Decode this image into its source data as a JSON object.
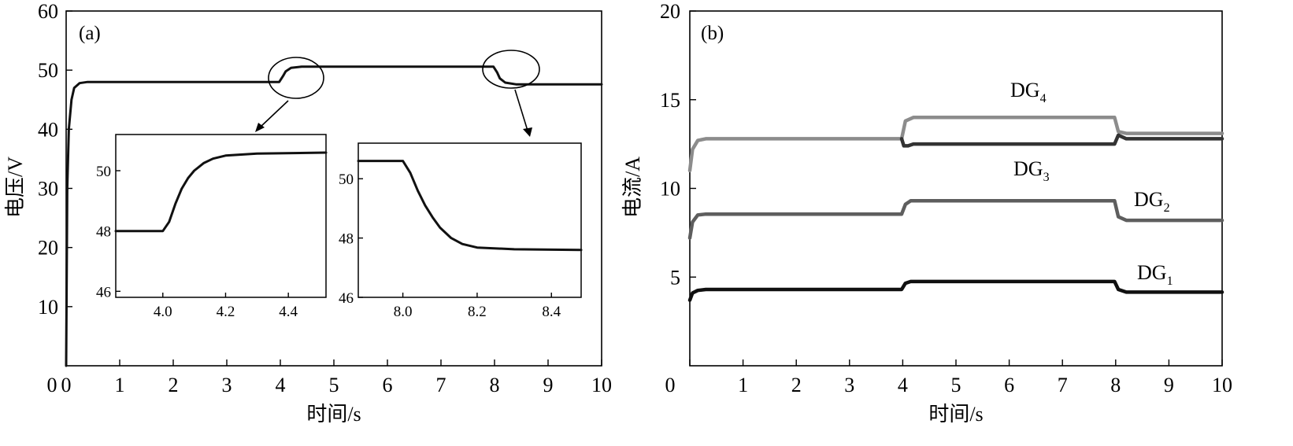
{
  "chart_data": [
    {
      "panel_label": "(a)",
      "type": "line",
      "xlabel": "时间/s",
      "ylabel": "电压/V",
      "xlim": [
        0,
        10
      ],
      "ylim": [
        0,
        60
      ],
      "xticks": [
        "0",
        "1",
        "2",
        "3",
        "4",
        "5",
        "6",
        "7",
        "8",
        "9",
        "10"
      ],
      "yticks": [
        "10",
        "20",
        "30",
        "40",
        "50",
        "60"
      ],
      "series": [
        {
          "color": "#111111",
          "points": [
            [
              0.0,
              0
            ],
            [
              0.02,
              30
            ],
            [
              0.05,
              40
            ],
            [
              0.1,
              45
            ],
            [
              0.15,
              47
            ],
            [
              0.25,
              47.8
            ],
            [
              0.4,
              48
            ],
            [
              3.98,
              48
            ],
            [
              4.05,
              49.0
            ],
            [
              4.1,
              49.8
            ],
            [
              4.2,
              50.4
            ],
            [
              4.4,
              50.6
            ],
            [
              7.98,
              50.6
            ],
            [
              8.05,
              49.6
            ],
            [
              8.1,
              48.6
            ],
            [
              8.2,
              47.9
            ],
            [
              8.4,
              47.6
            ],
            [
              10.0,
              47.6
            ]
          ]
        }
      ],
      "insets": [
        {
          "xlim": [
            3.85,
            4.52
          ],
          "ylim": [
            45.8,
            51.2
          ],
          "xticks": [
            "4.0",
            "4.2",
            "4.4"
          ],
          "yticks": [
            "46",
            "48",
            "50"
          ],
          "series_points": [
            [
              3.85,
              48.0
            ],
            [
              4.0,
              48.0
            ],
            [
              4.02,
              48.3
            ],
            [
              4.04,
              48.9
            ],
            [
              4.06,
              49.4
            ],
            [
              4.08,
              49.75
            ],
            [
              4.1,
              50.0
            ],
            [
              4.13,
              50.25
            ],
            [
              4.16,
              50.4
            ],
            [
              4.2,
              50.5
            ],
            [
              4.3,
              50.57
            ],
            [
              4.52,
              50.6
            ]
          ]
        },
        {
          "xlim": [
            7.88,
            8.48
          ],
          "ylim": [
            46.0,
            51.2
          ],
          "xticks": [
            "8.0",
            "8.2",
            "8.4"
          ],
          "yticks": [
            "46",
            "48",
            "50"
          ],
          "series_points": [
            [
              7.88,
              50.6
            ],
            [
              8.0,
              50.6
            ],
            [
              8.02,
              50.2
            ],
            [
              8.04,
              49.6
            ],
            [
              8.06,
              49.1
            ],
            [
              8.08,
              48.7
            ],
            [
              8.1,
              48.35
            ],
            [
              8.13,
              48.0
            ],
            [
              8.16,
              47.8
            ],
            [
              8.2,
              47.68
            ],
            [
              8.3,
              47.62
            ],
            [
              8.48,
              47.6
            ]
          ]
        }
      ]
    },
    {
      "panel_label": "(b)",
      "type": "line",
      "xlabel": "时间/s",
      "ylabel": "电流/A",
      "xlim": [
        0,
        10
      ],
      "ylim": [
        0,
        20
      ],
      "xticks": [
        "0",
        "1",
        "2",
        "3",
        "4",
        "5",
        "6",
        "7",
        "8",
        "9",
        "10"
      ],
      "yticks": [
        "5",
        "10",
        "15",
        "20"
      ],
      "series": [
        {
          "label": "DG4",
          "label_base": "DG",
          "label_sub": "4",
          "color": "#8c8c8c",
          "points": [
            [
              0.0,
              11.0
            ],
            [
              0.05,
              12.2
            ],
            [
              0.15,
              12.7
            ],
            [
              0.3,
              12.8
            ],
            [
              3.98,
              12.8
            ],
            [
              4.05,
              13.8
            ],
            [
              4.2,
              14.0
            ],
            [
              7.98,
              14.0
            ],
            [
              8.05,
              13.2
            ],
            [
              8.2,
              13.1
            ],
            [
              10.0,
              13.1
            ]
          ]
        },
        {
          "label": "DG3",
          "label_base": "DG",
          "label_sub": "3",
          "color": "#333333",
          "points": [
            [
              3.98,
              12.8
            ],
            [
              4.02,
              12.4
            ],
            [
              4.1,
              12.4
            ],
            [
              4.2,
              12.5
            ],
            [
              7.98,
              12.5
            ],
            [
              8.05,
              13.0
            ],
            [
              8.2,
              12.8
            ],
            [
              10.0,
              12.8
            ]
          ]
        },
        {
          "label": "DG2",
          "label_base": "DG",
          "label_sub": "2",
          "color": "#5e5e5e",
          "points": [
            [
              0.0,
              7.2
            ],
            [
              0.05,
              8.1
            ],
            [
              0.15,
              8.5
            ],
            [
              0.3,
              8.55
            ],
            [
              3.98,
              8.55
            ],
            [
              4.05,
              9.1
            ],
            [
              4.15,
              9.3
            ],
            [
              7.98,
              9.3
            ],
            [
              8.05,
              8.4
            ],
            [
              8.2,
              8.2
            ],
            [
              10.0,
              8.2
            ]
          ]
        },
        {
          "label": "DG1",
          "label_base": "DG",
          "label_sub": "1",
          "color": "#101010",
          "points": [
            [
              0.0,
              3.7
            ],
            [
              0.05,
              4.1
            ],
            [
              0.15,
              4.25
            ],
            [
              0.3,
              4.3
            ],
            [
              3.98,
              4.3
            ],
            [
              4.05,
              4.65
            ],
            [
              4.15,
              4.75
            ],
            [
              7.98,
              4.75
            ],
            [
              8.05,
              4.3
            ],
            [
              8.2,
              4.15
            ],
            [
              10.0,
              4.15
            ]
          ]
        }
      ]
    }
  ]
}
